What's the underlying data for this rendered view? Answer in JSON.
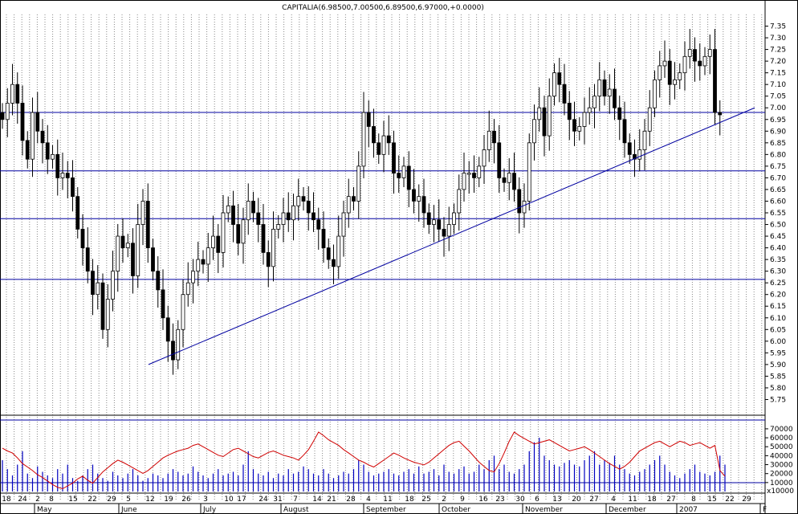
{
  "window_title": "CAPITALIA(6.98500,7.00500,6.89500,6.97000,+0.0000)",
  "chart_data": [
    {
      "type": "candlestick",
      "title": "CAPITALIA(6.98500,7.00500,6.89500,6.97000,+0.0000)",
      "ylim": [
        5.7,
        7.4
      ],
      "yticks": [
        "5.75",
        "5.80",
        "5.85",
        "5.90",
        "5.95",
        "6.00",
        "6.05",
        "6.10",
        "6.15",
        "6.20",
        "6.25",
        "6.30",
        "6.35",
        "6.40",
        "6.45",
        "6.50",
        "6.55",
        "6.60",
        "6.65",
        "6.70",
        "6.75",
        "6.80",
        "6.85",
        "6.90",
        "6.95",
        "7.00",
        "7.05",
        "7.10",
        "7.15",
        "7.20",
        "7.25",
        "7.30",
        "7.35"
      ],
      "grid": "vertical dotted",
      "approx_daily_closes": [
        6.95,
        7.02,
        7.1,
        7.02,
        6.86,
        6.78,
        6.98,
        6.9,
        6.85,
        6.78,
        6.8,
        6.7,
        6.72,
        6.7,
        6.62,
        6.48,
        6.4,
        6.3,
        6.2,
        6.25,
        6.05,
        6.18,
        6.3,
        6.45,
        6.4,
        6.42,
        6.28,
        6.5,
        6.6,
        6.4,
        6.3,
        6.22,
        6.1,
        6.0,
        5.92,
        6.05,
        6.2,
        6.25,
        6.3,
        6.35,
        6.33,
        6.4,
        6.45,
        6.38,
        6.55,
        6.58,
        6.5,
        6.42,
        6.52,
        6.6,
        6.55,
        6.5,
        6.38,
        6.32,
        6.48,
        6.5,
        6.55,
        6.52,
        6.58,
        6.62,
        6.6,
        6.55,
        6.52,
        6.48,
        6.4,
        6.35,
        6.32,
        6.45,
        6.55,
        6.62,
        6.6,
        6.75,
        6.98,
        6.92,
        6.85,
        6.8,
        6.88,
        6.85,
        6.72,
        6.7,
        6.75,
        6.65,
        6.6,
        6.62,
        6.55,
        6.5,
        6.52,
        6.48,
        6.45,
        6.5,
        6.55,
        6.65,
        6.72,
        6.72,
        6.7,
        6.75,
        6.82,
        6.9,
        6.85,
        6.7,
        6.68,
        6.72,
        6.65,
        6.55,
        6.6,
        6.85,
        6.95,
        7.0,
        6.88,
        7.05,
        7.15,
        7.1,
        7.02,
        6.95,
        6.9,
        6.92,
        6.98,
        7.0,
        7.05,
        7.12,
        7.05,
        7.08,
        7.0,
        6.95,
        6.85,
        6.8,
        6.78,
        6.82,
        6.9,
        7.0,
        7.12,
        7.18,
        7.2,
        7.1,
        7.12,
        7.15,
        7.22,
        7.25,
        7.2,
        7.18,
        7.22,
        7.25,
        6.98,
        6.97
      ],
      "horizontal_lines": [
        6.98,
        6.73,
        6.525,
        6.265
      ],
      "trendline": {
        "from": 5.9,
        "to": 7.0
      }
    },
    {
      "type": "bar",
      "series": [
        {
          "values": [
            35000,
            25000,
            18000,
            30000,
            45000,
            20000,
            15000,
            28000,
            22000,
            18000,
            15000,
            25000,
            20000,
            30000,
            15000,
            12000,
            18000,
            25000,
            30000,
            20000,
            15000,
            12000,
            22000,
            18000,
            15000,
            20000,
            25000,
            18000,
            12000,
            15000,
            20000,
            18000,
            15000,
            20000,
            25000,
            22000,
            18000,
            20000,
            28000,
            22000,
            18000,
            15000,
            20000,
            25000,
            18000,
            20000,
            22000,
            18000,
            30000,
            45000,
            25000,
            20000,
            18000,
            22000,
            15000,
            20000,
            18000,
            25000,
            20000,
            22000,
            28000,
            25000,
            20000,
            18000,
            25000,
            20000,
            15000,
            18000,
            22000,
            20000,
            25000,
            35000,
            30000,
            22000,
            18000,
            20000,
            22000,
            25000,
            20000,
            18000,
            22000,
            25000,
            20000,
            28000,
            20000,
            22000,
            25000,
            18000,
            30000,
            22000,
            20000,
            25000,
            28000,
            20000,
            22000,
            30000,
            25000,
            35000,
            40000,
            25000,
            30000,
            22000,
            20000,
            25000,
            30000,
            45000,
            55000,
            60000,
            40000,
            35000,
            30000,
            28000,
            32000,
            35000,
            30000,
            28000,
            35000,
            40000,
            45000,
            30000,
            35000,
            32000,
            40000,
            30000,
            25000,
            20000,
            18000,
            22000,
            25000,
            30000,
            35000,
            40000,
            30000,
            22000,
            18000,
            15000,
            20000,
            25000,
            30000,
            22000,
            20000,
            18000,
            22000,
            40000,
            30000
          ]
        },
        {
          "name": "oscillator",
          "values": [
            0.62,
            0.58,
            0.55,
            0.48,
            0.4,
            0.35,
            0.3,
            0.24,
            0.2,
            0.15,
            0.1,
            0.06,
            0.04,
            0.08,
            0.12,
            0.18,
            0.22,
            0.16,
            0.12,
            0.2,
            0.28,
            0.34,
            0.4,
            0.45,
            0.42,
            0.38,
            0.34,
            0.3,
            0.26,
            0.3,
            0.36,
            0.42,
            0.48,
            0.52,
            0.55,
            0.58,
            0.6,
            0.62,
            0.66,
            0.68,
            0.64,
            0.6,
            0.56,
            0.52,
            0.5,
            0.55,
            0.6,
            0.62,
            0.58,
            0.54,
            0.5,
            0.48,
            0.52,
            0.56,
            0.58,
            0.55,
            0.52,
            0.5,
            0.48,
            0.45,
            0.52,
            0.6,
            0.72,
            0.85,
            0.8,
            0.74,
            0.7,
            0.66,
            0.6,
            0.55,
            0.5,
            0.45,
            0.42,
            0.38,
            0.35,
            0.4,
            0.45,
            0.5,
            0.55,
            0.52,
            0.48,
            0.45,
            0.42,
            0.4,
            0.38,
            0.42,
            0.48,
            0.54,
            0.6,
            0.66,
            0.7,
            0.72,
            0.65,
            0.58,
            0.5,
            0.42,
            0.36,
            0.3,
            0.28,
            0.4,
            0.55,
            0.72,
            0.85,
            0.8,
            0.76,
            0.72,
            0.68,
            0.7,
            0.72,
            0.74,
            0.7,
            0.66,
            0.62,
            0.58,
            0.6,
            0.62,
            0.64,
            0.6,
            0.55,
            0.5,
            0.45,
            0.4,
            0.36,
            0.32,
            0.36,
            0.42,
            0.5,
            0.58,
            0.62,
            0.66,
            0.7,
            0.72,
            0.68,
            0.64,
            0.68,
            0.72,
            0.7,
            0.66,
            0.68,
            0.7,
            0.66,
            0.62,
            0.66,
            0.3,
            0.22
          ]
        }
      ],
      "yticks": [
        "10000",
        "20000",
        "30000",
        "40000",
        "50000",
        "60000",
        "70000"
      ],
      "ylim": [
        0,
        78000
      ],
      "unit_label": "x10000"
    }
  ],
  "x_axis": {
    "day_labels": [
      "18",
      "24",
      "2",
      "8",
      "15",
      "22",
      "29",
      "5",
      "12",
      "19",
      "26",
      "3",
      "10",
      "17",
      "24",
      "31",
      "7",
      "14",
      "21",
      "28",
      "4",
      "11",
      "18",
      "25",
      "2",
      "9",
      "16",
      "23",
      "30",
      "6",
      "13",
      "20",
      "27",
      "4",
      "11",
      "18",
      "27",
      "8",
      "15",
      "22",
      "29"
    ],
    "month_labels": [
      "May",
      "June",
      "July",
      "August",
      "September",
      "October",
      "November",
      "December",
      "2007",
      "F"
    ]
  },
  "colors": {
    "up": "#ffffff",
    "down": "#000000",
    "lines": "#0000a0",
    "oscillator": "#d00000",
    "volume": "#0000c0",
    "grid": "#888888"
  }
}
